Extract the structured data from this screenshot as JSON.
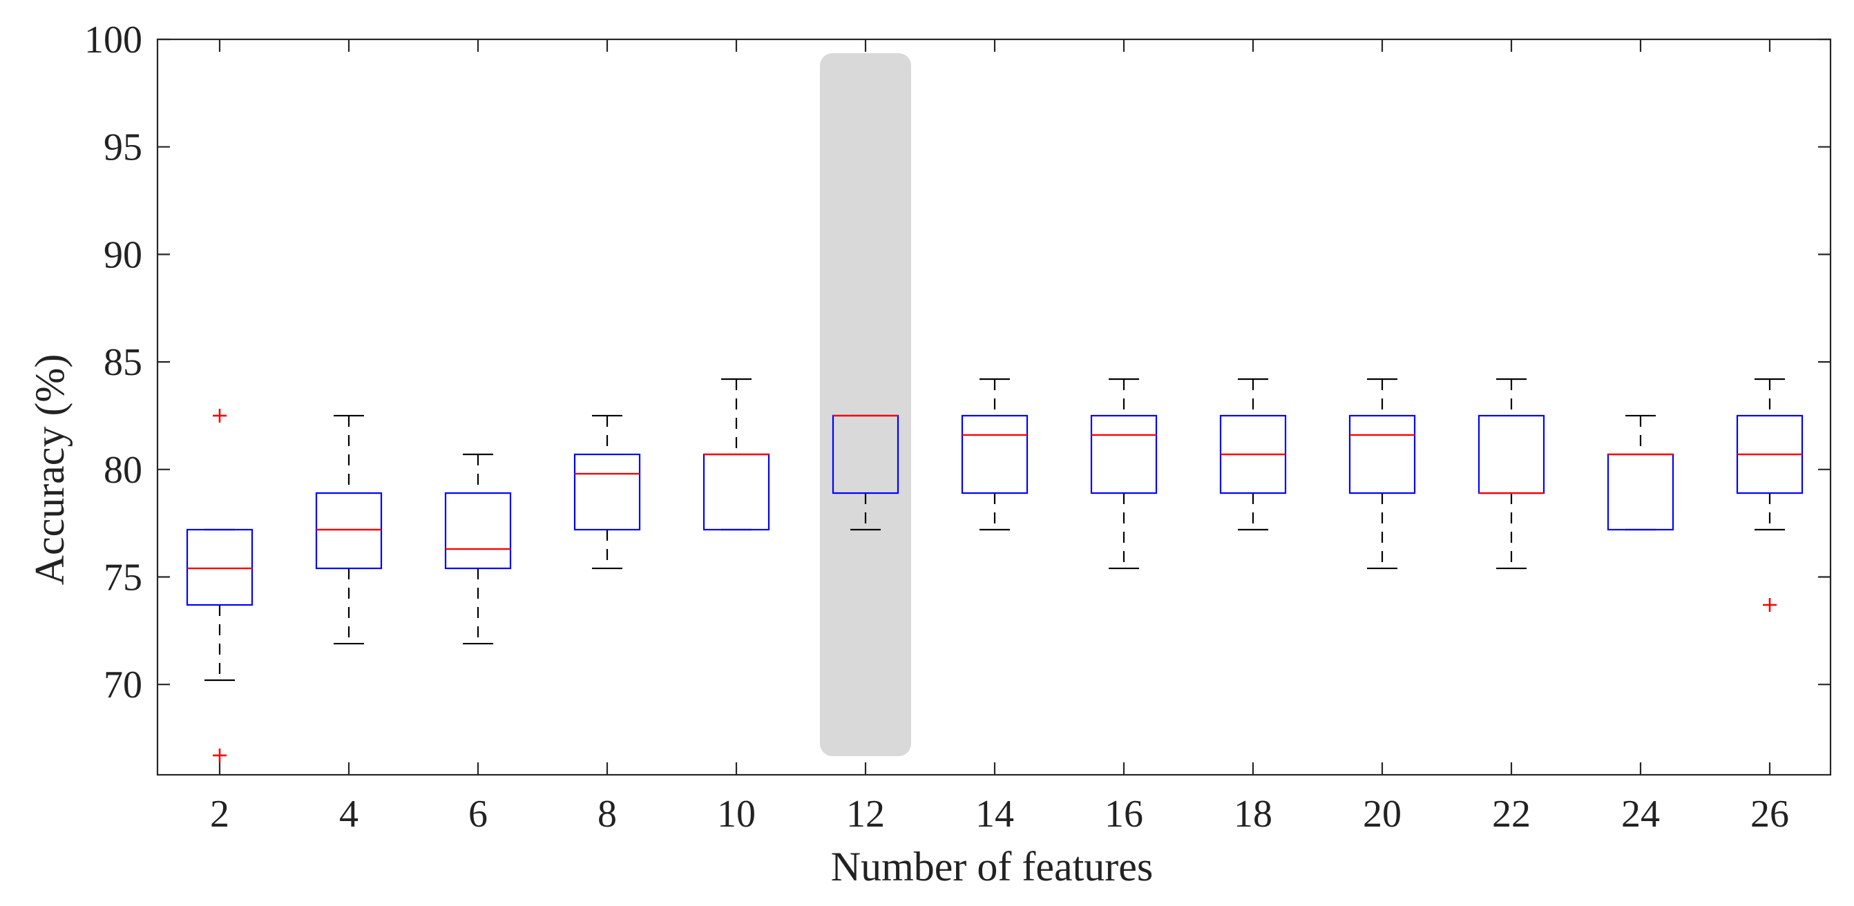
{
  "chart_data": {
    "type": "boxplot",
    "xlabel": "Number of features",
    "ylabel": "Accuracy (%)",
    "ylim": [
      65.8,
      100
    ],
    "yticks": [
      70,
      75,
      80,
      85,
      90,
      95,
      100
    ],
    "categories": [
      "2",
      "4",
      "6",
      "8",
      "10",
      "12",
      "14",
      "16",
      "18",
      "20",
      "22",
      "24",
      "26"
    ],
    "highlight_category": "12",
    "highlight_color": "#d9d9d9",
    "box_color": "#0000ff",
    "median_color": "#ff0000",
    "whisker_color": "#000000",
    "outlier_color": "#ff0000",
    "boxes": [
      {
        "category": "2",
        "whisker_low": 70.2,
        "q1": 73.7,
        "median": 75.4,
        "q3": 77.2,
        "whisker_high": 77.2,
        "outliers": [
          82.5,
          66.7
        ]
      },
      {
        "category": "4",
        "whisker_low": 71.9,
        "q1": 75.4,
        "median": 77.2,
        "q3": 78.9,
        "whisker_high": 82.5,
        "outliers": []
      },
      {
        "category": "6",
        "whisker_low": 71.9,
        "q1": 75.4,
        "median": 76.3,
        "q3": 78.9,
        "whisker_high": 80.7,
        "outliers": []
      },
      {
        "category": "8",
        "whisker_low": 75.4,
        "q1": 77.2,
        "median": 79.8,
        "q3": 80.7,
        "whisker_high": 82.5,
        "outliers": []
      },
      {
        "category": "10",
        "whisker_low": 77.2,
        "q1": 77.2,
        "median": 80.7,
        "q3": 80.7,
        "whisker_high": 84.2,
        "outliers": []
      },
      {
        "category": "12",
        "whisker_low": 77.2,
        "q1": 78.9,
        "median": 82.5,
        "q3": 82.5,
        "whisker_high": 82.5,
        "outliers": []
      },
      {
        "category": "14",
        "whisker_low": 77.2,
        "q1": 78.9,
        "median": 81.6,
        "q3": 82.5,
        "whisker_high": 84.2,
        "outliers": []
      },
      {
        "category": "16",
        "whisker_low": 75.4,
        "q1": 78.9,
        "median": 81.6,
        "q3": 82.5,
        "whisker_high": 84.2,
        "outliers": []
      },
      {
        "category": "18",
        "whisker_low": 77.2,
        "q1": 78.9,
        "median": 80.7,
        "q3": 82.5,
        "whisker_high": 84.2,
        "outliers": []
      },
      {
        "category": "20",
        "whisker_low": 75.4,
        "q1": 78.9,
        "median": 81.6,
        "q3": 82.5,
        "whisker_high": 84.2,
        "outliers": []
      },
      {
        "category": "22",
        "whisker_low": 75.4,
        "q1": 78.9,
        "median": 78.9,
        "q3": 82.5,
        "whisker_high": 84.2,
        "outliers": []
      },
      {
        "category": "24",
        "whisker_low": 77.2,
        "q1": 77.2,
        "median": 80.7,
        "q3": 80.7,
        "whisker_high": 82.5,
        "outliers": []
      },
      {
        "category": "26",
        "whisker_low": 77.2,
        "q1": 78.9,
        "median": 80.7,
        "q3": 82.5,
        "whisker_high": 84.2,
        "outliers": [
          73.7
        ]
      }
    ]
  }
}
